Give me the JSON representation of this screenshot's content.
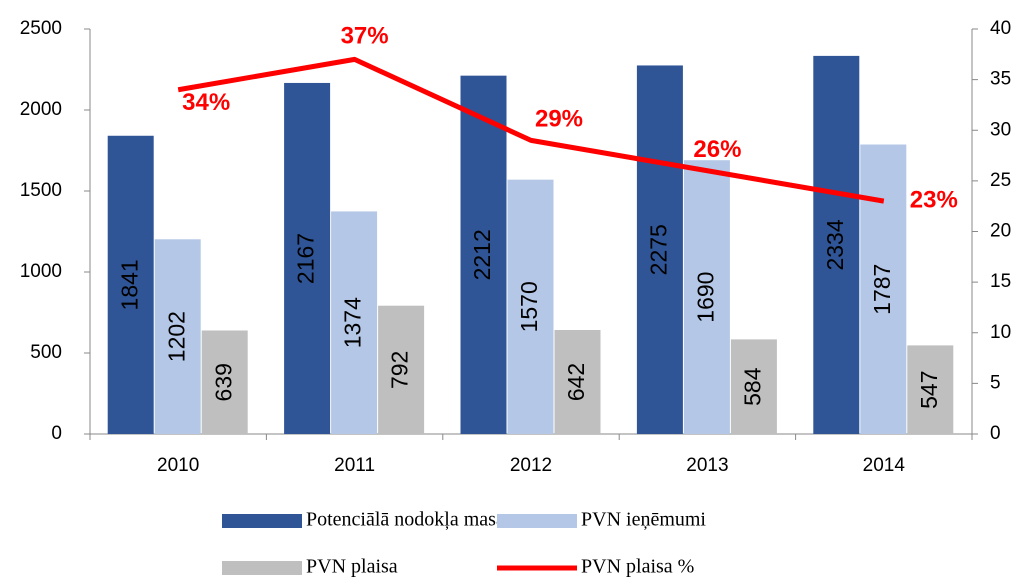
{
  "chart_data": {
    "type": "bar+line",
    "categories": [
      "2010",
      "2011",
      "2012",
      "2013",
      "2014"
    ],
    "series": [
      {
        "name": "Potenciālā nodokļa masa",
        "color": "#2f5597",
        "type": "bar",
        "values": [
          1841,
          2167,
          2212,
          2275,
          2334
        ]
      },
      {
        "name": "PVN ieņēmumi",
        "color": "#b4c7e7",
        "type": "bar",
        "values": [
          1202,
          1374,
          1570,
          1690,
          1787
        ]
      },
      {
        "name": "PVN plaisa",
        "color": "#bfbfbf",
        "type": "bar",
        "values": [
          639,
          792,
          642,
          584,
          547
        ]
      },
      {
        "name": "PVN plaisa %",
        "color": "#ff0000",
        "type": "line",
        "axis": "y2",
        "values": [
          34,
          37,
          29,
          26,
          23
        ],
        "value_labels": [
          "34%",
          "37%",
          "29%",
          "26%",
          "23%"
        ]
      }
    ],
    "ylim": [
      0,
      2500
    ],
    "yticks": [
      0,
      500,
      1000,
      1500,
      2000,
      2500
    ],
    "y2lim": [
      0,
      40
    ],
    "y2ticks": [
      0,
      5,
      10,
      15,
      20,
      25,
      30,
      35,
      40
    ],
    "grid": false
  }
}
